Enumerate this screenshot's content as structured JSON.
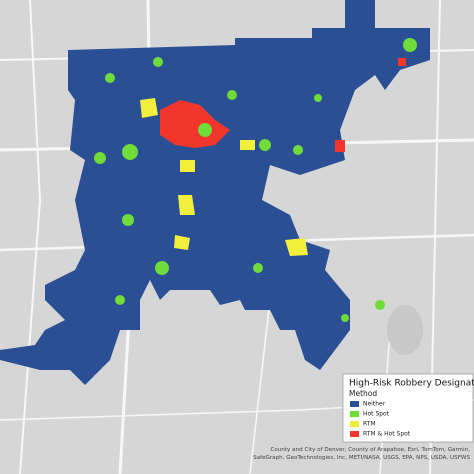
{
  "legend": {
    "title": "High-Risk Robbery Designation",
    "subtitle": "Method",
    "items": [
      {
        "label": "Neither",
        "color": "#2b4f94"
      },
      {
        "label": "Hot Spot",
        "color": "#6fdc3a"
      },
      {
        "label": "RTM",
        "color": "#f2ee3c"
      },
      {
        "label": "RTM & Hot Spot",
        "color": "#f2362b"
      }
    ]
  },
  "attribution": [
    "County and City of Denver, County of Arapahoe, Esri, TomTom, Garmin,",
    "SafeGraph, GeoTechnologies, Inc, METI/NASA, USGS, EPA, NPS, USDA, USFWS"
  ]
}
